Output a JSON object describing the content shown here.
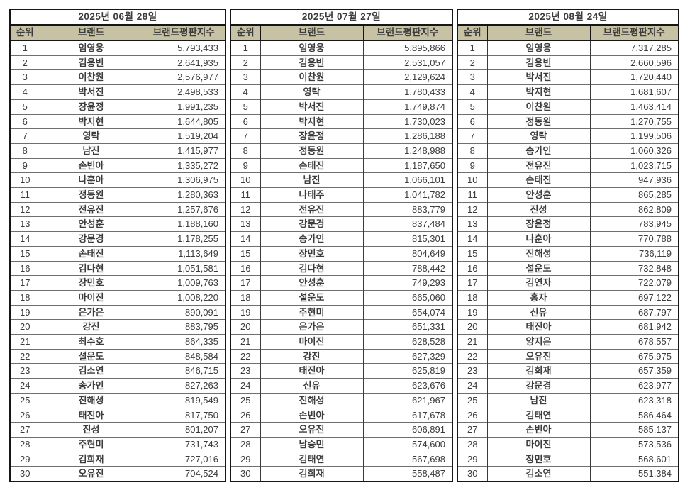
{
  "colors": {
    "header_bg": "#c8c2a4",
    "outer_border": "#161616",
    "inner_border": "#6f6f6f",
    "text": "#3c3c3c",
    "page_bg": "#ffffff"
  },
  "chart_data": [
    {
      "type": "table",
      "title": "2025년 06월 28일",
      "columns": [
        "순위",
        "브랜드",
        "브랜드평판지수"
      ],
      "rows": [
        [
          "1",
          "임영웅",
          "5,793,433"
        ],
        [
          "2",
          "김용빈",
          "2,641,935"
        ],
        [
          "3",
          "이찬원",
          "2,576,977"
        ],
        [
          "4",
          "박서진",
          "2,498,533"
        ],
        [
          "5",
          "장윤정",
          "1,991,235"
        ],
        [
          "6",
          "박지현",
          "1,644,805"
        ],
        [
          "7",
          "영탁",
          "1,519,204"
        ],
        [
          "8",
          "남진",
          "1,415,977"
        ],
        [
          "9",
          "손빈아",
          "1,335,272"
        ],
        [
          "10",
          "나훈아",
          "1,306,975"
        ],
        [
          "11",
          "정동원",
          "1,280,363"
        ],
        [
          "12",
          "전유진",
          "1,257,676"
        ],
        [
          "13",
          "안성훈",
          "1,188,160"
        ],
        [
          "14",
          "강문경",
          "1,178,255"
        ],
        [
          "15",
          "손태진",
          "1,113,649"
        ],
        [
          "16",
          "김다현",
          "1,051,581"
        ],
        [
          "17",
          "장민호",
          "1,009,763"
        ],
        [
          "18",
          "마이진",
          "1,008,220"
        ],
        [
          "19",
          "은가은",
          "890,091"
        ],
        [
          "20",
          "강진",
          "883,795"
        ],
        [
          "21",
          "최수호",
          "864,335"
        ],
        [
          "22",
          "설운도",
          "848,584"
        ],
        [
          "23",
          "김소연",
          "846,715"
        ],
        [
          "24",
          "송가인",
          "827,263"
        ],
        [
          "25",
          "진해성",
          "819,549"
        ],
        [
          "26",
          "태진아",
          "817,750"
        ],
        [
          "27",
          "진성",
          "801,207"
        ],
        [
          "28",
          "주현미",
          "731,743"
        ],
        [
          "29",
          "김희재",
          "727,016"
        ],
        [
          "30",
          "오유진",
          "704,524"
        ]
      ]
    },
    {
      "type": "table",
      "title": "2025년 07월 27일",
      "columns": [
        "순위",
        "브랜드",
        "브랜드평판지수"
      ],
      "rows": [
        [
          "1",
          "임영웅",
          "5,895,866"
        ],
        [
          "2",
          "김용빈",
          "2,531,057"
        ],
        [
          "3",
          "이찬원",
          "2,129,624"
        ],
        [
          "4",
          "영탁",
          "1,780,433"
        ],
        [
          "5",
          "박서진",
          "1,749,874"
        ],
        [
          "6",
          "박지현",
          "1,730,023"
        ],
        [
          "7",
          "장윤정",
          "1,286,188"
        ],
        [
          "8",
          "정동원",
          "1,248,988"
        ],
        [
          "9",
          "손태진",
          "1,187,650"
        ],
        [
          "10",
          "남진",
          "1,066,101"
        ],
        [
          "11",
          "나태주",
          "1,041,782"
        ],
        [
          "12",
          "전유진",
          "883,779"
        ],
        [
          "13",
          "강문경",
          "837,484"
        ],
        [
          "14",
          "송가인",
          "815,301"
        ],
        [
          "15",
          "장민호",
          "804,649"
        ],
        [
          "16",
          "김다현",
          "788,442"
        ],
        [
          "17",
          "안성훈",
          "749,293"
        ],
        [
          "18",
          "설운도",
          "665,060"
        ],
        [
          "19",
          "주현미",
          "654,074"
        ],
        [
          "20",
          "은가은",
          "651,331"
        ],
        [
          "21",
          "마이진",
          "628,528"
        ],
        [
          "22",
          "강진",
          "627,329"
        ],
        [
          "23",
          "태진아",
          "625,819"
        ],
        [
          "24",
          "신유",
          "623,676"
        ],
        [
          "25",
          "진해성",
          "621,967"
        ],
        [
          "26",
          "손빈아",
          "617,678"
        ],
        [
          "27",
          "오유진",
          "606,891"
        ],
        [
          "28",
          "남승민",
          "574,600"
        ],
        [
          "29",
          "김태연",
          "567,698"
        ],
        [
          "30",
          "김희재",
          "558,487"
        ]
      ]
    },
    {
      "type": "table",
      "title": "2025년 08월 24일",
      "columns": [
        "순위",
        "브랜드",
        "브랜드평판지수"
      ],
      "rows": [
        [
          "1",
          "임영웅",
          "7,317,285"
        ],
        [
          "2",
          "김용빈",
          "2,660,596"
        ],
        [
          "3",
          "박서진",
          "1,720,440"
        ],
        [
          "4",
          "박지현",
          "1,681,607"
        ],
        [
          "5",
          "이찬원",
          "1,463,414"
        ],
        [
          "6",
          "정동원",
          "1,270,755"
        ],
        [
          "7",
          "영탁",
          "1,199,506"
        ],
        [
          "8",
          "송가인",
          "1,060,326"
        ],
        [
          "9",
          "전유진",
          "1,023,715"
        ],
        [
          "10",
          "손태진",
          "947,936"
        ],
        [
          "11",
          "안성훈",
          "865,285"
        ],
        [
          "12",
          "진성",
          "862,809"
        ],
        [
          "13",
          "장윤정",
          "783,945"
        ],
        [
          "14",
          "나훈아",
          "770,788"
        ],
        [
          "15",
          "진해성",
          "736,119"
        ],
        [
          "16",
          "설운도",
          "732,848"
        ],
        [
          "17",
          "김연자",
          "722,079"
        ],
        [
          "18",
          "홍자",
          "697,122"
        ],
        [
          "19",
          "신유",
          "687,797"
        ],
        [
          "20",
          "태진아",
          "681,942"
        ],
        [
          "21",
          "양지은",
          "678,557"
        ],
        [
          "22",
          "오유진",
          "675,975"
        ],
        [
          "23",
          "김희재",
          "657,359"
        ],
        [
          "24",
          "강문경",
          "623,977"
        ],
        [
          "25",
          "남진",
          "623,318"
        ],
        [
          "26",
          "김태연",
          "586,464"
        ],
        [
          "27",
          "손빈아",
          "585,137"
        ],
        [
          "28",
          "마이진",
          "573,536"
        ],
        [
          "29",
          "장민호",
          "568,601"
        ],
        [
          "30",
          "김소연",
          "551,384"
        ]
      ]
    }
  ]
}
